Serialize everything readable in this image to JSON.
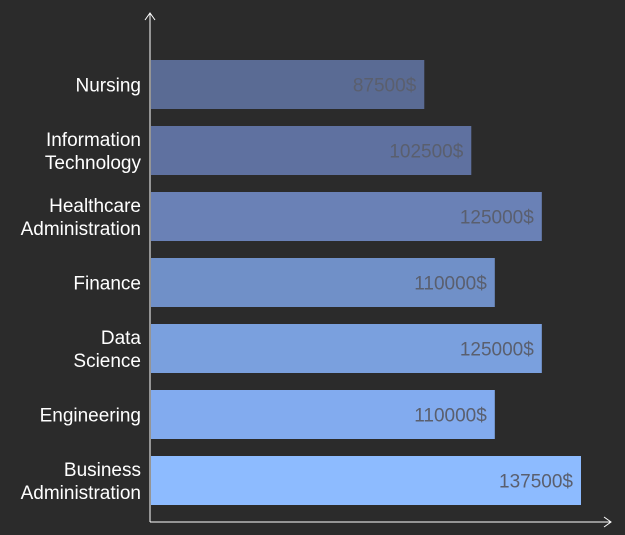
{
  "chart_data": {
    "type": "bar",
    "orientation": "horizontal",
    "categories": [
      "Nursing",
      "Information Technology",
      "Healthcare Administration",
      "Finance",
      "Data Science",
      "Engineering",
      "Business Administration"
    ],
    "category_lines": [
      [
        "Nursing"
      ],
      [
        "Information",
        "Technology"
      ],
      [
        "Healthcare",
        "Administration"
      ],
      [
        "Finance"
      ],
      [
        "Data",
        "Science"
      ],
      [
        "Engineering"
      ],
      [
        "Business",
        "Administration"
      ]
    ],
    "values": [
      87500,
      102500,
      125000,
      110000,
      125000,
      110000,
      137500
    ],
    "value_labels": [
      "87500$",
      "102500$",
      "125000$",
      "110000$",
      "125000$",
      "110000$",
      "137500$"
    ],
    "colors": [
      "#5a6b94",
      "#5f71a0",
      "#6a81b6",
      "#7090c8",
      "#7aa0de",
      "#82abef",
      "#8dbbff"
    ],
    "title": "",
    "xlabel": "",
    "ylabel": "",
    "xlim": [
      0,
      160000
    ],
    "grid": false,
    "legend": "none"
  }
}
